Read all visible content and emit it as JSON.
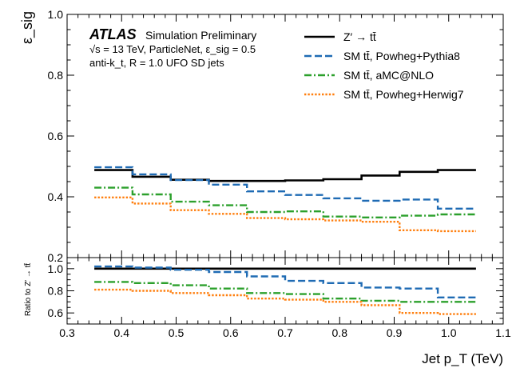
{
  "chart_data": {
    "type": "line",
    "step": true,
    "atlas_label": "ATLAS",
    "atlas_sub": "Simulation Preliminary",
    "info_lines": [
      "√s = 13 TeV, ParticleNet, ε_sig = 0.5",
      "anti-k_t, R = 1.0 UFO SD jets"
    ],
    "xlabel": "Jet p_T (TeV)",
    "xlim": [
      0.3,
      1.1
    ],
    "x_ticks": [
      "0.3",
      "0.4",
      "0.5",
      "0.6",
      "0.7",
      "0.8",
      "0.9",
      "1.0",
      "1.1"
    ],
    "x_tick_values": [
      0.3,
      0.4,
      0.5,
      0.6,
      0.7,
      0.8,
      0.9,
      1.0,
      1.1
    ],
    "bin_edges": [
      0.35,
      0.42,
      0.49,
      0.56,
      0.63,
      0.7,
      0.77,
      0.84,
      0.91,
      0.98,
      1.05
    ],
    "main": {
      "ylabel": "ε_sig",
      "ylim": [
        0.2,
        1.0
      ],
      "y_ticks": [
        "0.2",
        "0.4",
        "0.6",
        "0.8",
        "1.0"
      ],
      "y_tick_values": [
        0.2,
        0.4,
        0.6,
        0.8,
        1.0
      ],
      "series": [
        {
          "name": "Z′ → tt̄",
          "color": "#000000",
          "dash": "solid",
          "values": [
            0.488,
            0.466,
            0.456,
            0.452,
            0.452,
            0.454,
            0.458,
            0.47,
            0.482,
            0.488
          ]
        },
        {
          "name": "SM tt̄, Powheg+Pythia8",
          "color": "#1f6bb4",
          "dash": "dashed",
          "values": [
            0.497,
            0.474,
            0.455,
            0.44,
            0.418,
            0.406,
            0.395,
            0.387,
            0.391,
            0.361
          ]
        },
        {
          "name": "SM tt̄, aMC@NLO",
          "color": "#2ca02c",
          "dash": "dashdot",
          "values": [
            0.43,
            0.408,
            0.384,
            0.372,
            0.35,
            0.352,
            0.335,
            0.332,
            0.338,
            0.342
          ]
        },
        {
          "name": "SM tt̄, Powheg+Herwig7",
          "color": "#ff7f0e",
          "dash": "dotted",
          "values": [
            0.398,
            0.378,
            0.356,
            0.344,
            0.33,
            0.326,
            0.322,
            0.318,
            0.29,
            0.287
          ]
        }
      ]
    },
    "ratio": {
      "ylabel": "Ratio to Z′ → tt̄",
      "ylim": [
        0.5,
        1.1
      ],
      "y_ticks": [
        "0.6",
        "0.8",
        "1.0"
      ],
      "y_tick_values": [
        0.6,
        0.8,
        1.0
      ],
      "series": [
        {
          "name": "Z′ → tt̄",
          "color": "#000000",
          "dash": "solid",
          "values": [
            1.0,
            1.0,
            1.0,
            1.0,
            1.0,
            1.0,
            1.0,
            1.0,
            1.0,
            1.0
          ]
        },
        {
          "name": "SM tt̄, Powheg+Pythia8",
          "color": "#1f6bb4",
          "dash": "dashed",
          "values": [
            1.02,
            1.01,
            0.99,
            0.97,
            0.93,
            0.89,
            0.87,
            0.83,
            0.82,
            0.74
          ]
        },
        {
          "name": "SM tt̄, aMC@NLO",
          "color": "#2ca02c",
          "dash": "dashdot",
          "values": [
            0.88,
            0.87,
            0.85,
            0.82,
            0.78,
            0.77,
            0.73,
            0.71,
            0.7,
            0.7
          ]
        },
        {
          "name": "SM tt̄, Powheg+Herwig7",
          "color": "#ff7f0e",
          "dash": "dotted",
          "values": [
            0.81,
            0.8,
            0.78,
            0.76,
            0.73,
            0.72,
            0.7,
            0.67,
            0.6,
            0.59
          ]
        }
      ]
    },
    "legend_position": "top-right"
  }
}
